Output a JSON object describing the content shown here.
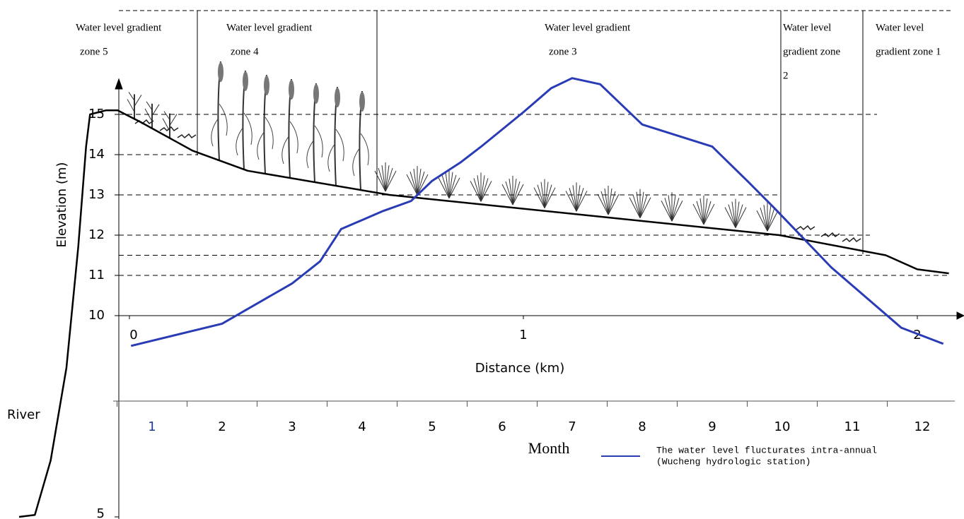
{
  "zones": [
    {
      "lines": [
        "Water level gradient",
        "zone 5"
      ]
    },
    {
      "lines": [
        "Water level gradient",
        "zone 4"
      ]
    },
    {
      "lines": [
        "Water level gradient",
        "zone 3"
      ]
    },
    {
      "lines": [
        "Water level",
        "gradient  zone",
        "2"
      ]
    },
    {
      "lines": [
        "Water level",
        "gradient zone 1"
      ]
    }
  ],
  "elevation_axis": {
    "label": "Elevation (m)",
    "ticks": [
      5,
      10,
      11,
      12,
      13,
      14,
      15
    ]
  },
  "distance_axis": {
    "label": "Distance (km)",
    "ticks": [
      0,
      1,
      2
    ]
  },
  "month_axis": {
    "label": "Month",
    "ticks": [
      1,
      2,
      3,
      4,
      5,
      6,
      7,
      8,
      9,
      10,
      11,
      12
    ]
  },
  "dashed_levels": [
    15,
    14,
    13,
    12,
    11.5,
    11
  ],
  "river_label": "River",
  "profile": {
    "color": "#000000",
    "x": [
      -0.28,
      -0.24,
      -0.2,
      -0.16,
      -0.13,
      -0.11,
      -0.1,
      -0.06,
      -0.03,
      0.03,
      0.16,
      0.3,
      0.66,
      1.65,
      1.92,
      2.0,
      2.08
    ],
    "values": [
      5.0,
      5.05,
      6.4,
      8.7,
      11.7,
      14.2,
      15.0,
      15.1,
      15.1,
      14.8,
      14.1,
      13.6,
      13.0,
      12.0,
      11.5,
      11.15,
      11.05
    ]
  },
  "water_level": {
    "name_lines": [
      "The water level flucturates intra-annual",
      "(Wucheng hydrologic station)"
    ],
    "color": "#2a3cb5",
    "x": [
      0.7,
      2.0,
      2.3,
      2.7,
      3.0,
      3.4,
      3.7,
      4.3,
      4.7,
      5.0,
      5.4,
      5.7,
      6.3,
      6.7,
      7.0,
      7.4,
      8.0,
      9.0,
      9.5,
      9.9,
      10.7,
      11.7,
      12.3
    ],
    "values": [
      9.25,
      9.8,
      10.1,
      10.5,
      10.8,
      11.35,
      12.15,
      12.6,
      12.85,
      13.35,
      13.8,
      14.2,
      15.05,
      15.65,
      15.9,
      15.75,
      14.75,
      14.2,
      13.35,
      12.65,
      11.2,
      9.7,
      9.3
    ]
  }
}
